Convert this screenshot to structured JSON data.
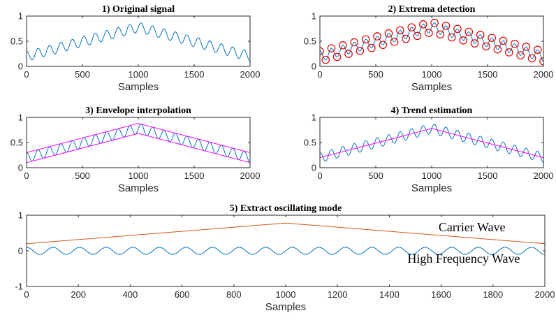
{
  "chart_data": [
    {
      "type": "line",
      "title": "1) Original signal",
      "xlabel": "Samples",
      "ylabel": "",
      "xlim": [
        0,
        2000
      ],
      "ylim": [
        0,
        1
      ],
      "xticks": [
        0,
        500,
        1000,
        1500,
        2000
      ],
      "yticks": [
        0,
        0.5,
        1
      ],
      "grid": false,
      "signal": {
        "trend_start": 0.2,
        "trend_peak": 0.78,
        "trend_end": 0.2,
        "peak_x": 1000,
        "amplitude": 0.1,
        "cycles": 19.5
      },
      "series": [
        {
          "color": "#0072BD",
          "kind": "signal"
        }
      ]
    },
    {
      "type": "line",
      "title": "2) Extrema detection",
      "xlabel": "Samples",
      "ylabel": "",
      "xlim": [
        0,
        2000
      ],
      "ylim": [
        0,
        1
      ],
      "xticks": [
        0,
        500,
        1000,
        1500,
        2000
      ],
      "yticks": [
        0,
        0.5,
        1
      ],
      "grid": false,
      "signal": {
        "trend_start": 0.2,
        "trend_peak": 0.78,
        "trend_end": 0.2,
        "peak_x": 1000,
        "amplitude": 0.1,
        "cycles": 19.5
      },
      "series": [
        {
          "color": "#0072BD",
          "kind": "signal"
        },
        {
          "color": "#E00000",
          "kind": "extrema",
          "marker": "circle"
        }
      ]
    },
    {
      "type": "line",
      "title": "3) Envelope interpolation",
      "xlabel": "Samples",
      "ylabel": "",
      "xlim": [
        0,
        2000
      ],
      "ylim": [
        0,
        1
      ],
      "xticks": [
        0,
        500,
        1000,
        1500,
        2000
      ],
      "yticks": [
        0,
        0.5,
        1
      ],
      "grid": false,
      "signal": {
        "trend_start": 0.2,
        "trend_peak": 0.78,
        "trend_end": 0.2,
        "peak_x": 1000,
        "amplitude": 0.1,
        "cycles": 19.5
      },
      "series": [
        {
          "color": "#0072BD",
          "kind": "signal"
        },
        {
          "color": "#FF00FF",
          "kind": "line",
          "x": [
            0,
            1000,
            2000
          ],
          "y": [
            0.3,
            0.88,
            0.3
          ]
        },
        {
          "color": "#FF00FF",
          "kind": "line",
          "x": [
            0,
            1000,
            2000
          ],
          "y": [
            0.1,
            0.68,
            0.1
          ]
        }
      ]
    },
    {
      "type": "line",
      "title": "4) Trend estimation",
      "xlabel": "Samples",
      "ylabel": "",
      "xlim": [
        0,
        2000
      ],
      "ylim": [
        0,
        1
      ],
      "xticks": [
        0,
        500,
        1000,
        1500,
        2000
      ],
      "yticks": [
        0,
        0.5,
        1
      ],
      "grid": false,
      "signal": {
        "trend_start": 0.2,
        "trend_peak": 0.78,
        "trend_end": 0.2,
        "peak_x": 1000,
        "amplitude": 0.1,
        "cycles": 19.5
      },
      "series": [
        {
          "color": "#0072BD",
          "kind": "signal"
        },
        {
          "color": "#FF00FF",
          "kind": "line",
          "x": [
            0,
            1000,
            2000
          ],
          "y": [
            0.2,
            0.78,
            0.2
          ]
        }
      ]
    },
    {
      "type": "line",
      "title": "5) Extract oscillating mode",
      "xlabel": "Samples",
      "ylabel": "",
      "xlim": [
        0,
        2000
      ],
      "ylim": [
        -1,
        1
      ],
      "xticks": [
        0,
        200,
        400,
        600,
        800,
        1000,
        1200,
        1400,
        1600,
        1800,
        2000
      ],
      "yticks": [
        -1,
        0,
        1
      ],
      "grid": false,
      "signal": {
        "trend_start": 0,
        "trend_peak": 0,
        "trend_end": 0,
        "peak_x": 1000,
        "amplitude": 0.1,
        "cycles": 19.5
      },
      "annotations": [
        {
          "text": "Carrier Wave",
          "x": 1590,
          "y": 0.55
        },
        {
          "text": "High Frequency Wave",
          "x": 1470,
          "y": -0.33
        }
      ],
      "series": [
        {
          "color": "#D95319",
          "kind": "line",
          "x": [
            0,
            1000,
            2000
          ],
          "y": [
            0.2,
            0.78,
            0.2
          ]
        },
        {
          "color": "#0072BD",
          "kind": "signal"
        }
      ]
    }
  ]
}
